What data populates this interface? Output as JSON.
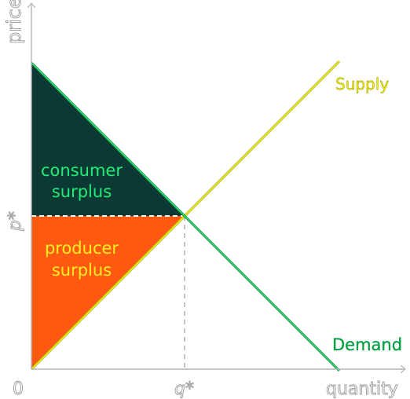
{
  "axes": {
    "y_label": "price",
    "x_label": "quantity",
    "origin_label": "0",
    "price_star_label": "p*",
    "quantity_star_label": "q*"
  },
  "curves": {
    "supply_label": "Supply",
    "demand_label": "Demand"
  },
  "regions": {
    "consumer_line1": "consumer",
    "consumer_line2": "surplus",
    "producer_line1": "producer",
    "producer_line2": "surplus"
  },
  "colors": {
    "consumer_fill": "#0b3a35",
    "producer_fill": "#ff5a10",
    "supply_line": "#e8e000",
    "demand_line": "#00aa44",
    "region_text_consumer": "#22ee77",
    "region_text_producer": "#ffee22",
    "axis": "#b4b4b4"
  }
}
